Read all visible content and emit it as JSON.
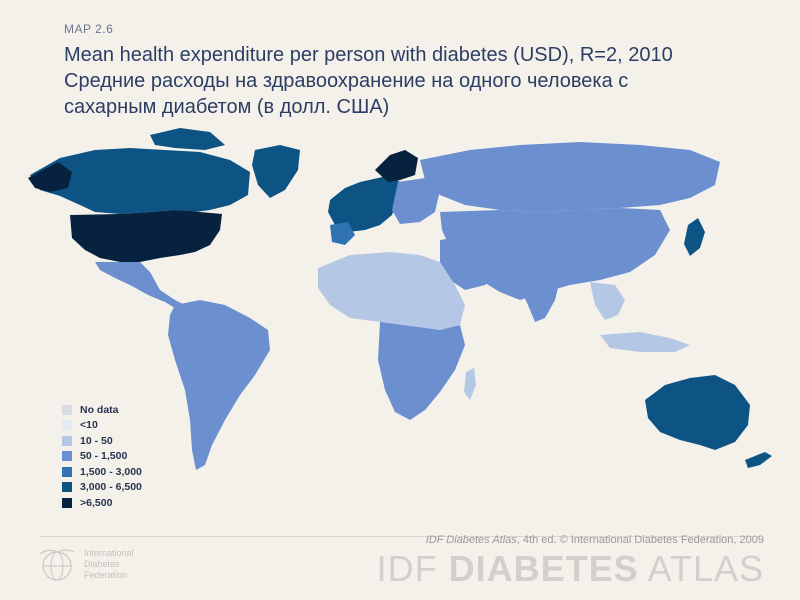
{
  "header": {
    "map_label": "MAP 2.6",
    "title_en": "Mean health expenditure per person with diabetes (USD), R=2, 2010",
    "title_ru_line1": "Средние расходы на здравоохранение на одного человека с",
    "title_ru_line2": "сахарным диабетом (в долл. США)"
  },
  "legend": {
    "items": [
      {
        "label": "No data",
        "color": "#d9dde3"
      },
      {
        "label": "<10",
        "color": "#e5ebf5"
      },
      {
        "label": "10 - 50",
        "color": "#b4c8e6"
      },
      {
        "label": "50 - 1,500",
        "color": "#6c8fd0"
      },
      {
        "label": "1,500 - 3,000",
        "color": "#2f73b0"
      },
      {
        "label": "3,000 - 6,500",
        "color": "#0d5484"
      },
      {
        "label": ">6,500",
        "color": "#06223f"
      }
    ]
  },
  "footer": {
    "credit_book": "IDF Diabetes Atlas",
    "credit_rest": ", 4th ed.  © International Diabetes Federation, 2009",
    "wordmark_idf": "IDF",
    "wordmark_diabetes": "DIABETES",
    "wordmark_atlas": "ATLAS",
    "org_line1": "International",
    "org_line2": "Diabetes",
    "org_line3": "Federation"
  },
  "map": {
    "regions": [
      {
        "name": "north-america-canada",
        "class": ">6,500 / 3,000 - 6,500"
      },
      {
        "name": "usa",
        "class": ">6,500"
      },
      {
        "name": "greenland",
        "class": "3,000 - 6,500"
      },
      {
        "name": "latin-america",
        "class": "50 - 1,500"
      },
      {
        "name": "europe-west",
        "class": "3,000 - 6,500"
      },
      {
        "name": "russia-asia",
        "class": "50 - 1,500"
      },
      {
        "name": "africa",
        "class": "10 - 50"
      },
      {
        "name": "australia",
        "class": "3,000 - 6,500"
      },
      {
        "name": "japan",
        "class": "3,000 - 6,500"
      }
    ]
  }
}
